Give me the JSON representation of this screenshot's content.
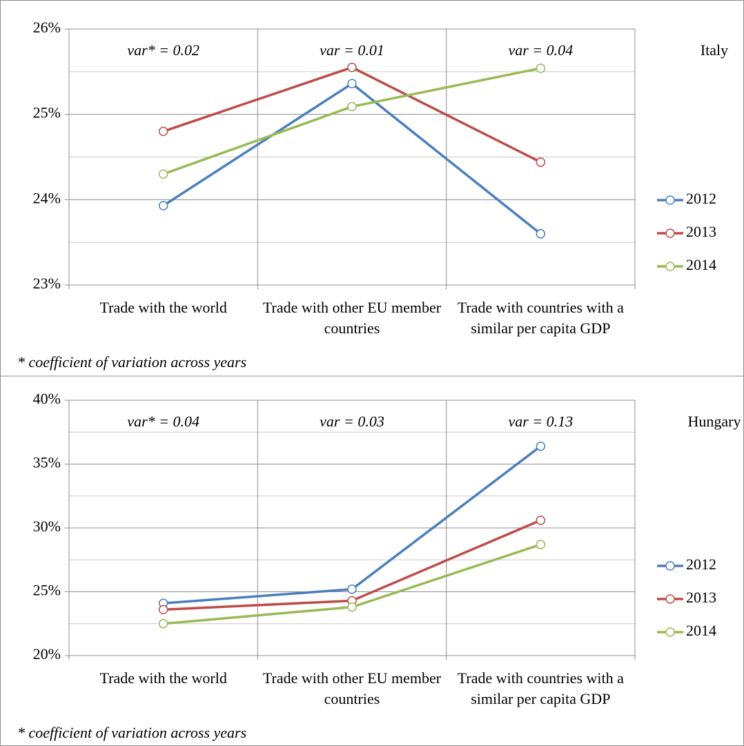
{
  "chart_data": [
    {
      "type": "line",
      "title": "Italy",
      "annotations": [
        "var* = 0.02",
        "var = 0.01",
        "var = 0.04"
      ],
      "footnote": "* coefficient of variation across years",
      "categories": [
        "Trade with the world",
        "Trade with other EU member countries",
        "Trade with countries with a similar per capita GDP"
      ],
      "series": [
        {
          "name": "2012",
          "color": "#4a7ebb",
          "values": [
            23.93,
            25.36,
            23.6
          ]
        },
        {
          "name": "2013",
          "color": "#be4b48",
          "values": [
            24.8,
            25.55,
            24.44
          ]
        },
        {
          "name": "2014",
          "color": "#98b954",
          "values": [
            24.3,
            25.09,
            25.54
          ]
        }
      ],
      "ylim": [
        23,
        26
      ],
      "yticks": [
        {
          "value": 23,
          "label": "23%"
        },
        {
          "value": 24,
          "label": "24%"
        },
        {
          "value": 25,
          "label": "25%"
        },
        {
          "value": 26,
          "label": "26%"
        }
      ],
      "minor_yticks": [
        23.5,
        24.5,
        25.5
      ],
      "grid": true,
      "legend": "right"
    },
    {
      "type": "line",
      "title": "Hungary",
      "annotations": [
        "var* = 0.04",
        "var = 0.03",
        "var = 0.13"
      ],
      "footnote": "* coefficient of variation across years",
      "categories": [
        "Trade with the world",
        "Trade with other EU member countries",
        "Trade with countries with a similar per capita GDP"
      ],
      "series": [
        {
          "name": "2012",
          "color": "#4a7ebb",
          "values": [
            24.1,
            25.2,
            36.4
          ]
        },
        {
          "name": "2013",
          "color": "#be4b48",
          "values": [
            23.6,
            24.3,
            30.6
          ]
        },
        {
          "name": "2014",
          "color": "#98b954",
          "values": [
            22.5,
            23.8,
            28.7
          ]
        }
      ],
      "ylim": [
        20,
        40
      ],
      "yticks": [
        {
          "value": 20,
          "label": "20%"
        },
        {
          "value": 25,
          "label": "25%"
        },
        {
          "value": 30,
          "label": "30%"
        },
        {
          "value": 35,
          "label": "35%"
        },
        {
          "value": 40,
          "label": "40%"
        }
      ],
      "minor_yticks": [
        22.5,
        27.5,
        32.5,
        37.5
      ],
      "grid": true,
      "legend": "right"
    }
  ]
}
